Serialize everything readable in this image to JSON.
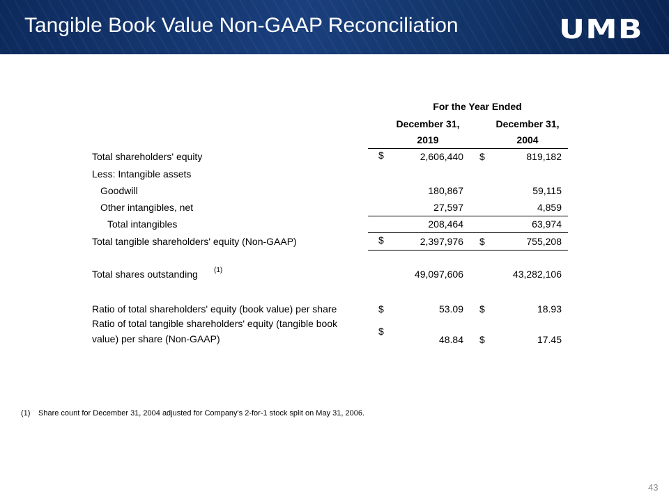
{
  "header": {
    "title": "Tangible Book Value Non-GAAP Reconciliation",
    "logo": "UMB"
  },
  "table": {
    "period_header": "For the Year Ended",
    "columns": [
      {
        "line1": "December 31,",
        "line2": "2019"
      },
      {
        "line1": "December 31,",
        "line2": "2004"
      }
    ],
    "rows": [
      {
        "label": "Total shareholders' equity",
        "currency_1": "$",
        "value_1": "2,606,440",
        "currency_2": "$",
        "value_2": "819,182"
      },
      {
        "label": "Less: Intangible assets"
      },
      {
        "label": "Goodwill",
        "value_1": "180,867",
        "value_2": "59,115"
      },
      {
        "label": "Other intangibles, net",
        "value_1": "27,597",
        "value_2": "4,859"
      },
      {
        "label": "Total intangibles",
        "value_1": "208,464",
        "value_2": "63,974"
      },
      {
        "label": "Total tangible shareholders' equity (Non-GAAP)",
        "currency_1": "$",
        "value_1": "2,397,976",
        "currency_2": "$",
        "value_2": "755,208"
      },
      {
        "label": "Total shares outstanding",
        "note_ref": "(1)",
        "value_1": "49,097,606",
        "value_2": "43,282,106"
      },
      {
        "label": "Ratio of total shareholders' equity (book value) per share",
        "currency_1": "$",
        "value_1": "53.09",
        "currency_2": "$",
        "value_2": "18.93"
      },
      {
        "label": "Ratio of total tangible shareholders' equity (tangible book value) per share (Non-GAAP)",
        "currency_1": "$",
        "value_1": "48.84",
        "currency_2": "$",
        "value_2": "17.45"
      }
    ]
  },
  "footnote": {
    "marker": "(1)",
    "text": "Share count for December 31, 2004 adjusted for Company's 2-for-1 stock split on May 31, 2006."
  },
  "page_number": "43"
}
